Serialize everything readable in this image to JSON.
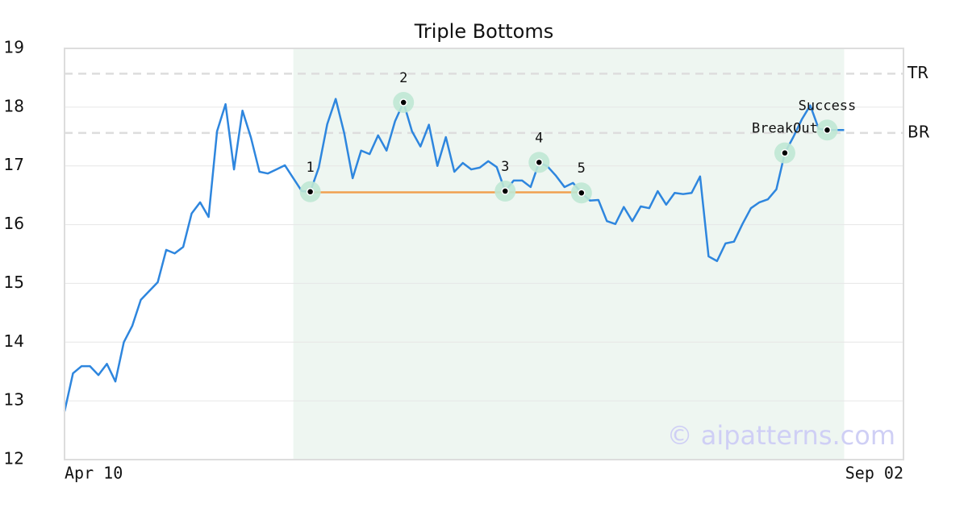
{
  "chart_data": {
    "type": "line",
    "title": "Triple Bottoms",
    "x": [
      0,
      1,
      2,
      3,
      4,
      5,
      6,
      7,
      8,
      9,
      10,
      11,
      12,
      13,
      14,
      15,
      16,
      17,
      18,
      19,
      20,
      21,
      22,
      23,
      24,
      25,
      26,
      27,
      28,
      29,
      30,
      31,
      32,
      33,
      34,
      35,
      36,
      37,
      38,
      39,
      40,
      41,
      42,
      43,
      44,
      45,
      46,
      47,
      48,
      49,
      50,
      51,
      52,
      53,
      54,
      55,
      56,
      57,
      58,
      59,
      60,
      61,
      62,
      63,
      64,
      65,
      66,
      67,
      68,
      69,
      70,
      71,
      72,
      73,
      74,
      75,
      76,
      77,
      78,
      79,
      80,
      81,
      82,
      83,
      84,
      85,
      86,
      87,
      88,
      89,
      90,
      91,
      92
    ],
    "values": [
      12.82,
      13.47,
      13.59,
      13.59,
      13.44,
      13.63,
      13.33,
      14.0,
      14.28,
      14.72,
      14.87,
      15.02,
      15.57,
      15.51,
      15.62,
      16.19,
      16.38,
      16.13,
      17.59,
      18.05,
      16.94,
      17.94,
      17.48,
      16.9,
      16.87,
      16.94,
      17.01,
      16.79,
      16.57,
      16.56,
      16.97,
      17.71,
      18.14,
      17.56,
      16.79,
      17.26,
      17.2,
      17.52,
      17.26,
      17.76,
      18.08,
      17.59,
      17.33,
      17.7,
      17.0,
      17.49,
      16.9,
      17.05,
      16.94,
      16.97,
      17.08,
      16.98,
      16.57,
      16.75,
      16.75,
      16.64,
      17.06,
      16.99,
      16.83,
      16.64,
      16.71,
      16.54,
      16.41,
      16.42,
      16.06,
      16.01,
      16.3,
      16.06,
      16.31,
      16.28,
      16.57,
      16.34,
      16.54,
      16.52,
      16.54,
      16.82,
      15.46,
      15.38,
      15.68,
      15.71,
      16.01,
      16.28,
      16.38,
      16.43,
      16.6,
      17.22,
      17.49,
      17.79,
      18.03,
      17.63,
      17.61,
      17.61,
      17.61
    ],
    "color": "#2e86de",
    "xlim": [
      0,
      99
    ],
    "xticks": [
      {
        "value": 0,
        "label": "Apr 10"
      },
      {
        "value": 99,
        "label": "Sep 02"
      }
    ],
    "ylim": [
      12,
      19
    ],
    "yticks": [
      12,
      13,
      14,
      15,
      16,
      17,
      18,
      19
    ],
    "grid": true,
    "highlight": [
      27,
      92
    ],
    "levels": [
      {
        "label": "TR",
        "value": 18.57
      },
      {
        "label": "BR",
        "value": 17.56
      }
    ],
    "support": {
      "x": [
        29,
        61
      ],
      "y": [
        16.55,
        16.55
      ],
      "color": "#f0a050"
    },
    "markers": [
      {
        "label": "1",
        "x": 29,
        "y": 16.56
      },
      {
        "label": "2",
        "x": 40,
        "y": 18.08
      },
      {
        "label": "3",
        "x": 52,
        "y": 16.57
      },
      {
        "label": "4",
        "x": 56,
        "y": 17.06
      },
      {
        "label": "5",
        "x": 61,
        "y": 16.54
      },
      {
        "label": "BreakOut",
        "x": 85,
        "y": 17.22
      },
      {
        "label": "Success",
        "x": 90,
        "y": 17.61
      }
    ],
    "watermark": "© aipatterns.com"
  }
}
